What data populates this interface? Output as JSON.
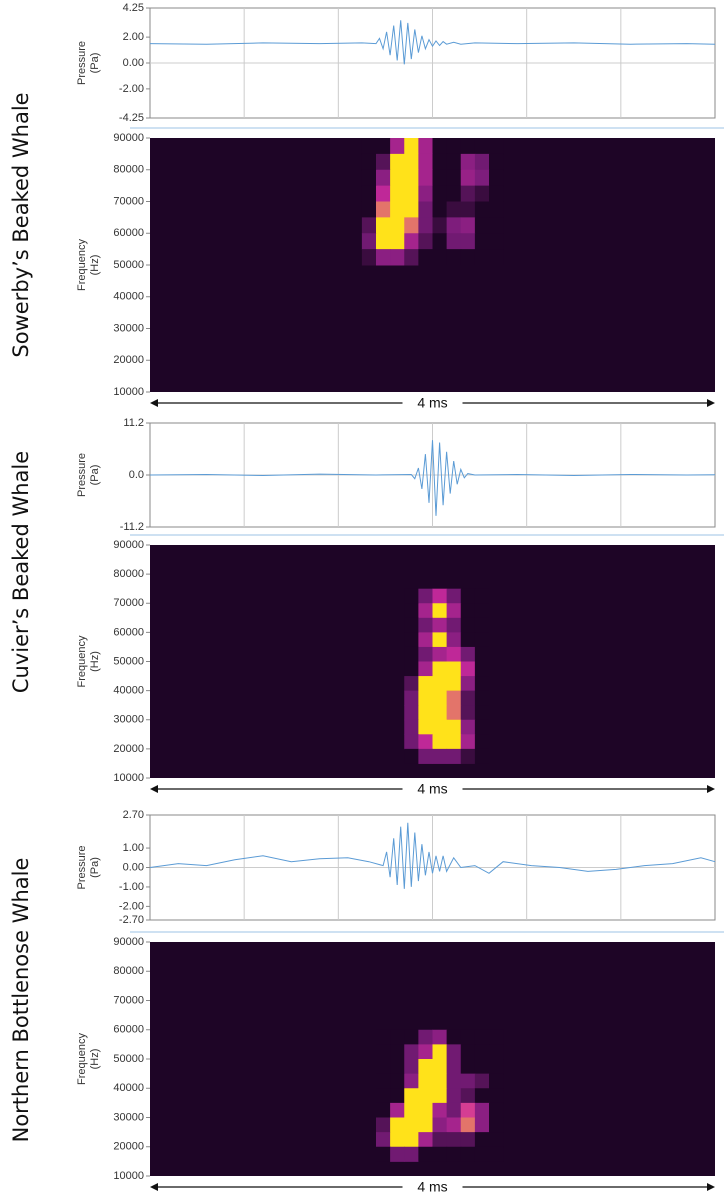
{
  "panel_labels": [
    "Sowerby’s Beaked Whale",
    "Cuvier’s Beaked Whale",
    "Northern Bottlenose Whale"
  ],
  "chart_data": [
    {
      "type": "line",
      "ylabel": [
        "Pressure",
        "(Pa)"
      ],
      "color": "#5b9bd5",
      "xlim": [
        0,
        4
      ],
      "ylim": [
        -4.25,
        4.25
      ],
      "yticks": [
        4.25,
        {
          "value": 2,
          "label": "2.00"
        },
        {
          "value": 0,
          "label": "0.00"
        },
        {
          "value": -2,
          "label": "-2.00"
        },
        -4.25
      ],
      "x": [
        0,
        0.4,
        0.8,
        1.2,
        1.5,
        1.6,
        1.625,
        1.65,
        1.675,
        1.7,
        1.725,
        1.75,
        1.775,
        1.8,
        1.825,
        1.85,
        1.875,
        1.9,
        1.925,
        1.95,
        1.975,
        2.0,
        2.025,
        2.05,
        2.075,
        2.1,
        2.15,
        2.2,
        2.3,
        2.6,
        3.0,
        3.4,
        3.8,
        4.0
      ],
      "values": [
        1.5,
        1.45,
        1.55,
        1.5,
        1.55,
        1.5,
        1.9,
        1.1,
        2.4,
        0.6,
        2.9,
        0.2,
        3.3,
        -0.1,
        3.1,
        0.3,
        2.6,
        0.8,
        2.1,
        1.1,
        1.8,
        1.3,
        1.7,
        1.35,
        1.65,
        1.45,
        1.6,
        1.45,
        1.55,
        1.5,
        1.55,
        1.45,
        1.5,
        1.45
      ]
    },
    {
      "type": "heatmap",
      "ylabel": [
        "Frequency",
        "(Hz)"
      ],
      "xlim": [
        0,
        4
      ],
      "ylim": [
        10000,
        90000
      ],
      "yticks": [
        90000,
        80000,
        70000,
        60000,
        50000,
        40000,
        30000,
        20000,
        10000
      ],
      "colormap": [
        "#1e0526",
        "#7a1c7a",
        "#d02ba0",
        "#ffe21a"
      ],
      "duration_label": "4 ms",
      "times": [
        1.55,
        1.65,
        1.75,
        1.85,
        1.95,
        2.05,
        2.15,
        2.25,
        2.35,
        2.45
      ],
      "frequencies": [
        87500,
        82500,
        77500,
        72500,
        67500,
        62500,
        57500,
        52500
      ],
      "intensity": [
        [
          0,
          0,
          0.5,
          1,
          0.5,
          0,
          0,
          0,
          0,
          0
        ],
        [
          0,
          0.2,
          1,
          1,
          0.5,
          0,
          0,
          0.4,
          0.3,
          0
        ],
        [
          0,
          0.4,
          1,
          1,
          0.5,
          0,
          0,
          0.45,
          0.35,
          0
        ],
        [
          0,
          0.6,
          1,
          1,
          0.4,
          0,
          0,
          0.2,
          0.1,
          0
        ],
        [
          0,
          0.8,
          1,
          1,
          0.3,
          0,
          0.1,
          0.1,
          0,
          0
        ],
        [
          0.2,
          1,
          1,
          0.8,
          0.3,
          0.1,
          0.35,
          0.4,
          0,
          0
        ],
        [
          0.3,
          1,
          1,
          0.5,
          0.2,
          0,
          0.3,
          0.3,
          0,
          0
        ],
        [
          0.1,
          0.4,
          0.4,
          0.2,
          0,
          0,
          0,
          0,
          0,
          0
        ]
      ]
    },
    {
      "type": "line",
      "ylabel": [
        "Pressure",
        "(Pa)"
      ],
      "color": "#5b9bd5",
      "xlim": [
        0,
        4
      ],
      "ylim": [
        -11.2,
        11.2
      ],
      "yticks": [
        11.2,
        {
          "value": 0,
          "label": "0.0"
        },
        -11.2
      ],
      "x": [
        0,
        0.4,
        0.8,
        1.2,
        1.6,
        1.85,
        1.875,
        1.9,
        1.925,
        1.95,
        1.975,
        2.0,
        2.025,
        2.05,
        2.075,
        2.1,
        2.125,
        2.15,
        2.175,
        2.2,
        2.225,
        2.25,
        2.3,
        2.6,
        3.0,
        3.4,
        3.8,
        4.0
      ],
      "values": [
        0,
        0.1,
        -0.1,
        0.2,
        0,
        0.1,
        -0.8,
        1.5,
        -3,
        4.5,
        -6,
        7.5,
        -8.8,
        7,
        -6.5,
        5,
        -4,
        3,
        -2,
        1.2,
        -0.6,
        0.3,
        0,
        0.1,
        -0.1,
        0.1,
        0,
        0.05
      ]
    },
    {
      "type": "heatmap",
      "ylabel": [
        "Frequency",
        "(Hz)"
      ],
      "xlim": [
        0,
        4
      ],
      "ylim": [
        10000,
        90000
      ],
      "yticks": [
        90000,
        80000,
        70000,
        60000,
        50000,
        40000,
        30000,
        20000,
        10000
      ],
      "colormap": [
        "#1e0526",
        "#7a1c7a",
        "#d02ba0",
        "#ffe21a"
      ],
      "duration_label": "4 ms",
      "times": [
        1.85,
        1.95,
        2.05,
        2.15,
        2.25,
        2.35
      ],
      "frequencies": [
        72500,
        67500,
        62500,
        57500,
        52500,
        47500,
        42500,
        37500,
        32500,
        27500,
        22500,
        17500
      ],
      "intensity": [
        [
          0,
          0.3,
          0.6,
          0.3,
          0,
          0
        ],
        [
          0,
          0.5,
          1,
          0.5,
          0,
          0
        ],
        [
          0,
          0.3,
          0.5,
          0.3,
          0,
          0
        ],
        [
          0,
          0.5,
          1,
          0.4,
          0,
          0
        ],
        [
          0,
          0.3,
          0.5,
          0.6,
          0.3,
          0
        ],
        [
          0,
          0.5,
          1,
          1,
          0.6,
          0
        ],
        [
          0.2,
          1,
          1,
          1,
          0.4,
          0
        ],
        [
          0.3,
          1,
          1,
          0.8,
          0.2,
          0
        ],
        [
          0.3,
          1,
          1,
          0.8,
          0.2,
          0
        ],
        [
          0.3,
          1,
          1,
          1,
          0.4,
          0
        ],
        [
          0.3,
          0.6,
          1,
          1,
          0.5,
          0
        ],
        [
          0,
          0.3,
          0.3,
          0.3,
          0.1,
          0
        ]
      ]
    },
    {
      "type": "line",
      "ylabel": [
        "Pressure",
        "(Pa)"
      ],
      "color": "#5b9bd5",
      "xlim": [
        0,
        4
      ],
      "ylim": [
        -2.7,
        2.7
      ],
      "yticks": [
        {
          "value": 2.7,
          "label": "2.70"
        },
        {
          "value": 1,
          "label": "1.00"
        },
        {
          "value": 0,
          "label": "0.00"
        },
        {
          "value": -1,
          "label": "-1.00"
        },
        {
          "value": -2,
          "label": "-2.00"
        },
        {
          "value": -2.7,
          "label": "-2.70"
        }
      ],
      "x": [
        0,
        0.2,
        0.4,
        0.6,
        0.8,
        1.0,
        1.2,
        1.4,
        1.55,
        1.65,
        1.675,
        1.7,
        1.725,
        1.75,
        1.775,
        1.8,
        1.825,
        1.85,
        1.875,
        1.9,
        1.925,
        1.95,
        1.975,
        2.0,
        2.025,
        2.05,
        2.075,
        2.1,
        2.15,
        2.2,
        2.3,
        2.4,
        2.5,
        2.7,
        2.9,
        3.1,
        3.3,
        3.5,
        3.7,
        3.9,
        4.0
      ],
      "values": [
        0,
        0.2,
        0.1,
        0.4,
        0.6,
        0.3,
        0.45,
        0.5,
        0.3,
        0.1,
        0.8,
        -0.5,
        1.5,
        -0.9,
        2.1,
        -1.1,
        2.3,
        -1.0,
        1.8,
        -0.7,
        1.2,
        -0.4,
        0.8,
        -0.3,
        0.6,
        -0.2,
        0.6,
        -0.2,
        0.5,
        0,
        0.1,
        -0.3,
        0.3,
        0.1,
        0,
        -0.2,
        -0.1,
        0.1,
        0.2,
        0.5,
        0.3
      ]
    },
    {
      "type": "heatmap",
      "ylabel": [
        "Frequency",
        "(Hz)"
      ],
      "xlim": [
        0,
        4
      ],
      "ylim": [
        10000,
        90000
      ],
      "yticks": [
        90000,
        80000,
        70000,
        60000,
        50000,
        40000,
        30000,
        20000,
        10000
      ],
      "colormap": [
        "#1e0526",
        "#7a1c7a",
        "#d02ba0",
        "#ffe21a"
      ],
      "duration_label": "4 ms",
      "times": [
        1.65,
        1.75,
        1.85,
        1.95,
        2.05,
        2.15,
        2.25,
        2.35,
        2.45
      ],
      "frequencies": [
        57500,
        52500,
        47500,
        42500,
        37500,
        32500,
        27500,
        22500,
        17500
      ],
      "intensity": [
        [
          0,
          0,
          0,
          0.3,
          0.4,
          0,
          0,
          0,
          0
        ],
        [
          0,
          0,
          0.3,
          0.5,
          1,
          0.3,
          0,
          0,
          0
        ],
        [
          0,
          0,
          0.3,
          1,
          1,
          0.3,
          0,
          0,
          0
        ],
        [
          0,
          0,
          0.4,
          1,
          1,
          0.3,
          0.3,
          0.2,
          0
        ],
        [
          0,
          0,
          1,
          1,
          1,
          0.3,
          0.2,
          0,
          0
        ],
        [
          0,
          0.5,
          1,
          1,
          0.5,
          0.3,
          0.7,
          0.4,
          0
        ],
        [
          0.2,
          1,
          1,
          1,
          0.4,
          0.5,
          0.8,
          0.4,
          0
        ],
        [
          0.3,
          1,
          1,
          0.5,
          0.2,
          0.2,
          0.2,
          0,
          0
        ],
        [
          0,
          0.3,
          0.3,
          0,
          0,
          0,
          0,
          0,
          0
        ]
      ]
    }
  ]
}
